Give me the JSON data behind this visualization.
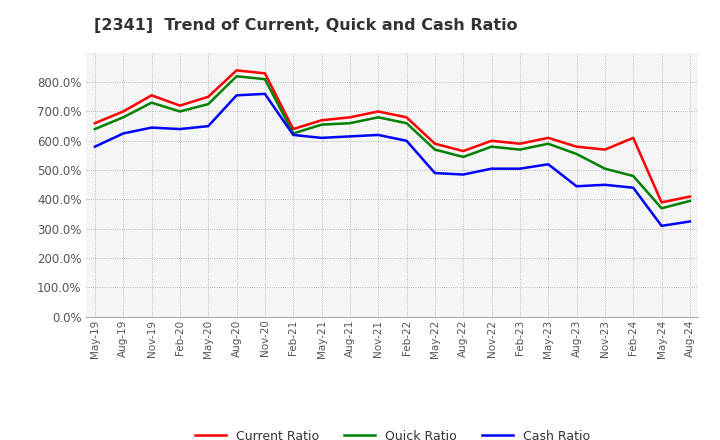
{
  "title": "[2341]  Trend of Current, Quick and Cash Ratio",
  "x_labels": [
    "May-19",
    "Aug-19",
    "Nov-19",
    "Feb-20",
    "May-20",
    "Aug-20",
    "Nov-20",
    "Feb-21",
    "May-21",
    "Aug-21",
    "Nov-21",
    "Feb-22",
    "May-22",
    "Aug-22",
    "Nov-22",
    "Feb-23",
    "May-23",
    "Aug-23",
    "Nov-23",
    "Feb-24",
    "May-24",
    "Aug-24"
  ],
  "current_ratio": [
    660,
    700,
    755,
    720,
    750,
    840,
    830,
    640,
    670,
    680,
    700,
    680,
    590,
    565,
    600,
    590,
    610,
    580,
    570,
    610,
    390,
    410
  ],
  "quick_ratio": [
    640,
    680,
    730,
    700,
    725,
    820,
    810,
    625,
    655,
    660,
    680,
    660,
    570,
    545,
    580,
    570,
    590,
    555,
    505,
    480,
    370,
    395
  ],
  "cash_ratio": [
    580,
    625,
    645,
    640,
    650,
    755,
    760,
    620,
    610,
    615,
    620,
    600,
    490,
    485,
    505,
    505,
    520,
    445,
    450,
    440,
    310,
    325
  ],
  "current_color": "#FF0000",
  "quick_color": "#008000",
  "cash_color": "#0000FF",
  "ylim": [
    0,
    900
  ],
  "yticks": [
    0,
    100,
    200,
    300,
    400,
    500,
    600,
    700,
    800
  ],
  "background_color": "#ffffff",
  "plot_area_color": "#f5f5f5",
  "legend_labels": [
    "Current Ratio",
    "Quick Ratio",
    "Cash Ratio"
  ],
  "line_width": 1.8
}
